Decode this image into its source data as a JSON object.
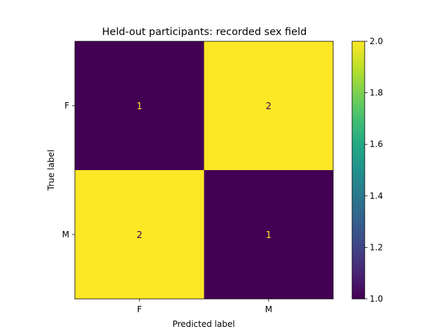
{
  "chart_data": {
    "type": "heatmap",
    "title": "Held-out participants: recorded sex field",
    "xlabel": "Predicted label",
    "ylabel": "True label",
    "x_categories": [
      "F",
      "M"
    ],
    "y_categories": [
      "F",
      "M"
    ],
    "values": [
      [
        1,
        2
      ],
      [
        2,
        1
      ]
    ],
    "colorbar": {
      "range": [
        1.0,
        2.0
      ],
      "ticks": [
        "1.0",
        "1.2",
        "1.4",
        "1.6",
        "1.8",
        "2.0"
      ],
      "colormap": "viridis"
    },
    "colors": {
      "low": "#440154",
      "high": "#fde725"
    }
  }
}
